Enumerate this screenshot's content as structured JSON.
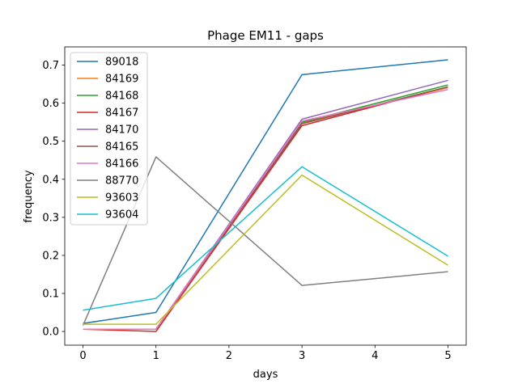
{
  "chart_data": {
    "type": "line",
    "title": "Phage EM11 - gaps",
    "xlabel": "days",
    "ylabel": "frequency",
    "x": [
      0,
      1,
      3,
      5
    ],
    "xlim": [
      -0.25,
      5.25
    ],
    "ylim": [
      -0.036,
      0.748
    ],
    "xticks": [
      "0",
      "1",
      "2",
      "3",
      "4",
      "5"
    ],
    "yticks": [
      "0.0",
      "0.1",
      "0.2",
      "0.3",
      "0.4",
      "0.5",
      "0.6",
      "0.7"
    ],
    "grid": false,
    "legend_position": "top-left",
    "series": [
      {
        "name": "89018",
        "color": "#1f77b4",
        "values": [
          0.021,
          0.05,
          0.675,
          0.714
        ]
      },
      {
        "name": "84169",
        "color": "#ff7f0e",
        "values": [
          0.006,
          0.006,
          0.548,
          0.641
        ]
      },
      {
        "name": "84168",
        "color": "#2ca02c",
        "values": [
          0.006,
          0.006,
          0.55,
          0.648
        ]
      },
      {
        "name": "84167",
        "color": "#d62728",
        "values": [
          0.006,
          0.0,
          0.541,
          0.643
        ]
      },
      {
        "name": "84170",
        "color": "#9467bd",
        "values": [
          0.006,
          0.006,
          0.558,
          0.66
        ]
      },
      {
        "name": "84165",
        "color": "#8c564b",
        "values": [
          0.006,
          0.006,
          0.546,
          0.643
        ]
      },
      {
        "name": "84166",
        "color": "#e377c2",
        "values": [
          0.006,
          0.006,
          0.553,
          0.636
        ]
      },
      {
        "name": "88770",
        "color": "#7f7f7f",
        "values": [
          0.016,
          0.459,
          0.121,
          0.157
        ]
      },
      {
        "name": "93603",
        "color": "#bcbd22",
        "values": [
          0.019,
          0.019,
          0.411,
          0.174
        ]
      },
      {
        "name": "93604",
        "color": "#17becf",
        "values": [
          0.056,
          0.087,
          0.433,
          0.198
        ]
      }
    ]
  }
}
